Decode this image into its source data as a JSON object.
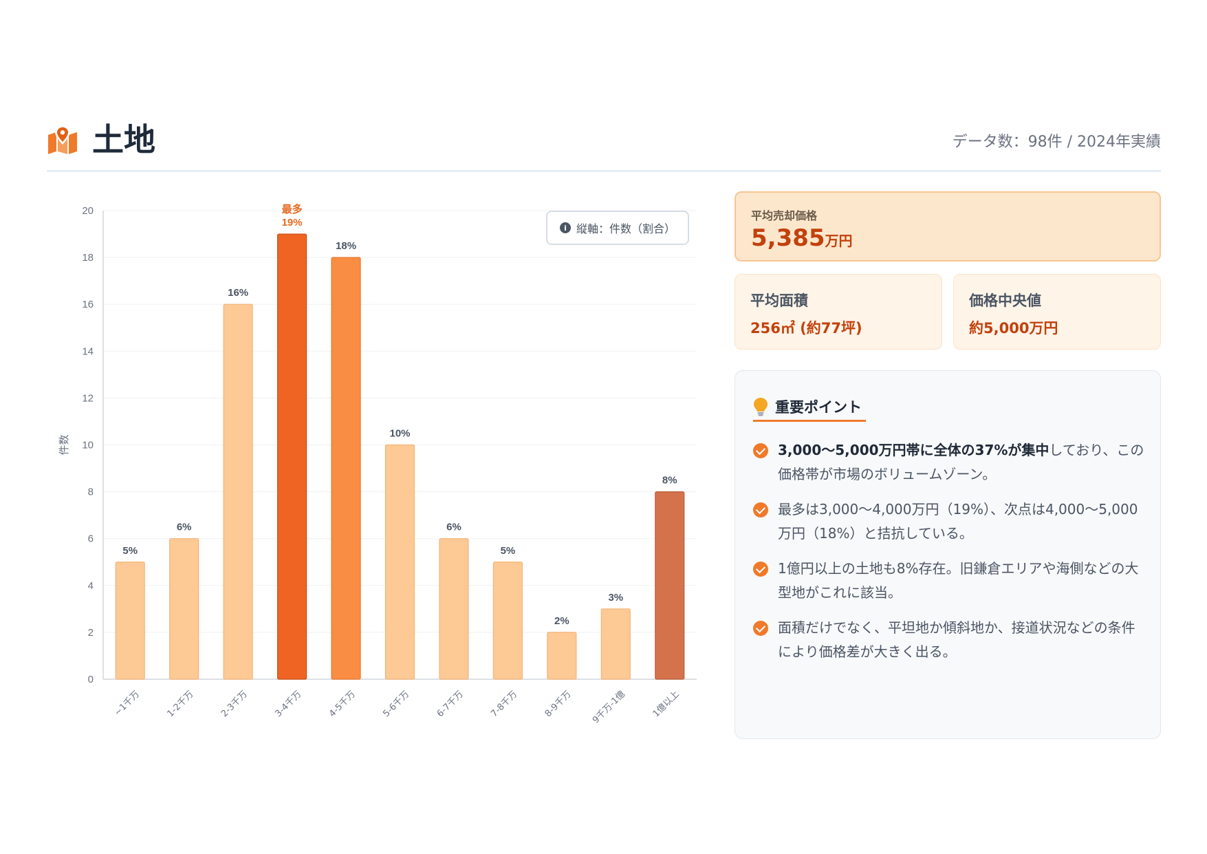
{
  "header": {
    "title": "土地",
    "meta": "データ数：98件 / 2024年実績",
    "icon": "map-pin-icon"
  },
  "legend": {
    "text": "縦軸：件数（割合）",
    "icon": "info-icon"
  },
  "stats": {
    "avg_price": {
      "label": "平均売却価格",
      "number": "5,385",
      "unit": "万円"
    },
    "avg_area": {
      "label": "平均面積",
      "value": "256㎡ (約77坪)"
    },
    "median_price": {
      "label": "価格中央値",
      "value": "約5,000万円"
    }
  },
  "points": {
    "title": "重要ポイント",
    "icon": "lightbulb-icon",
    "items": [
      {
        "bold": "3,000〜5,000万円帯に全体の37%が集中",
        "text": "しており、この価格帯が市場のボリュームゾーン。"
      },
      {
        "bold": "",
        "text": "最多は3,000〜4,000万円（19%）、次点は4,000〜5,000万円（18%）と拮抗している。"
      },
      {
        "bold": "",
        "text": "1億円以上の土地も8%存在。旧鎌倉エリアや海側などの大型地がこれに該当。"
      },
      {
        "bold": "",
        "text": "面積だけでなく、平坦地か傾斜地か、接道状況などの条件により価格差が大きく出る。"
      }
    ]
  },
  "colors": {
    "accent": "#f07a2a",
    "bar_light": "#fdc994",
    "bar_top": "#ef6423",
    "bar_second": "#f98d43",
    "bar_high": "#d4734b"
  },
  "chart_data": {
    "type": "bar",
    "categories": [
      "~1千万",
      "1-2千万",
      "2-3千万",
      "3-4千万",
      "4-5千万",
      "5-6千万",
      "6-7千万",
      "7-8千万",
      "8-9千万",
      "9千万-1億",
      "1億以上"
    ],
    "values": [
      5,
      6,
      16,
      19,
      18,
      10,
      6,
      5,
      2,
      3,
      8
    ],
    "data_labels": [
      "5%",
      "6%",
      "16%",
      "19%",
      "18%",
      "10%",
      "6%",
      "5%",
      "2%",
      "3%",
      "8%"
    ],
    "highlight_label": "最多",
    "ylabel": "件数",
    "xlabel": "",
    "ylim": [
      0,
      20
    ],
    "yticks": [
      0,
      2,
      4,
      6,
      8,
      10,
      12,
      14,
      16,
      18,
      20
    ],
    "grid": true
  }
}
